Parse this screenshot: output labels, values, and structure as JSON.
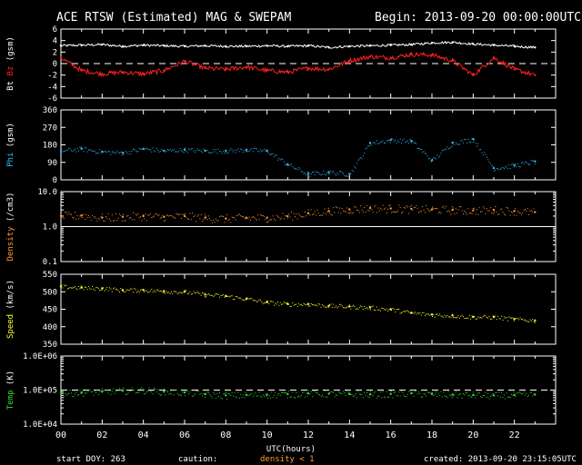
{
  "title": "ACE RTSW (Estimated) MAG & SWEPAM",
  "begin": "Begin: 2013-09-20 00:00:00UTC",
  "footer": {
    "start_doy": "start DOY: 263",
    "caution": "caution:",
    "density_note": "density < 1",
    "created": "created: 2013-09-20 23:15:05UTC"
  },
  "colors": {
    "bt": "#ffffff",
    "bz": "#ff2020",
    "phi": "#33bbee",
    "density": "#ff9933",
    "speed": "#ffff33",
    "temp": "#33dd33",
    "caution": "#ff9933"
  },
  "chart_data": [
    {
      "type": "line",
      "ylabel_parts": [
        "Bt",
        "Bz",
        "(gsm)"
      ],
      "ylim": [
        -6,
        6
      ],
      "yticks": [
        -6,
        -4,
        -2,
        0,
        2,
        4,
        6
      ],
      "reference_line": 0,
      "series": [
        {
          "name": "Bt",
          "x": [
            0,
            1,
            2,
            3,
            4,
            5,
            6,
            7,
            8,
            9,
            10,
            11,
            12,
            13,
            14,
            15,
            16,
            17,
            18,
            19,
            20,
            21,
            22,
            23
          ],
          "values": [
            3.1,
            3.2,
            3.3,
            3.0,
            3.2,
            3.1,
            3.0,
            3.1,
            3.0,
            3.0,
            3.1,
            3.0,
            3.1,
            2.8,
            3.0,
            3.1,
            3.2,
            3.3,
            3.6,
            3.7,
            3.4,
            3.2,
            3.0,
            2.8
          ]
        },
        {
          "name": "Bz",
          "x": [
            0,
            1,
            2,
            3,
            4,
            5,
            6,
            7,
            8,
            9,
            10,
            11,
            12,
            13,
            14,
            15,
            16,
            17,
            18,
            19,
            20,
            21,
            22,
            23
          ],
          "values": [
            1.0,
            -1.2,
            -1.8,
            -1.5,
            -1.8,
            -1.2,
            0.4,
            -0.8,
            -1.0,
            -0.6,
            -1.2,
            -1.5,
            -0.8,
            -1.0,
            0.5,
            1.2,
            1.0,
            1.6,
            1.5,
            0.5,
            -2.0,
            1.0,
            -1.0,
            -2.0
          ]
        }
      ]
    },
    {
      "type": "scatter",
      "ylabel_parts": [
        "Phi",
        "(gsm)"
      ],
      "ylim": [
        0,
        360
      ],
      "yticks": [
        0,
        90,
        180,
        270,
        360
      ],
      "series": [
        {
          "name": "Phi",
          "x": [
            0,
            1,
            2,
            3,
            4,
            5,
            6,
            7,
            8,
            9,
            10,
            11,
            12,
            13,
            14,
            15,
            16,
            17,
            18,
            19,
            20,
            21,
            22,
            23
          ],
          "values": [
            150,
            160,
            145,
            140,
            160,
            150,
            155,
            150,
            150,
            155,
            150,
            80,
            30,
            40,
            30,
            190,
            205,
            200,
            100,
            190,
            210,
            60,
            75,
            95
          ]
        }
      ]
    },
    {
      "type": "scatter",
      "ylabel_parts": [
        "Density",
        "(/cm3)"
      ],
      "yscale": "log",
      "ylim": [
        0.1,
        10.0
      ],
      "ytick_labels": [
        "0.1",
        "1.0",
        "10.0"
      ],
      "reference_line": 1.0,
      "series": [
        {
          "name": "Density",
          "x": [
            0,
            1,
            2,
            3,
            4,
            5,
            6,
            7,
            8,
            9,
            10,
            11,
            12,
            13,
            14,
            15,
            16,
            17,
            18,
            19,
            20,
            21,
            22,
            23
          ],
          "values": [
            2.0,
            2.1,
            1.8,
            1.9,
            2.0,
            1.9,
            2.0,
            1.8,
            1.7,
            1.8,
            1.8,
            2.0,
            2.4,
            2.8,
            3.1,
            3.4,
            3.3,
            3.2,
            3.1,
            3.0,
            2.9,
            3.0,
            2.8,
            2.6
          ]
        }
      ]
    },
    {
      "type": "scatter",
      "ylabel_parts": [
        "Speed",
        "(km/s)"
      ],
      "ylim": [
        350,
        550
      ],
      "yticks": [
        350,
        400,
        450,
        500,
        550
      ],
      "series": [
        {
          "name": "Speed",
          "x": [
            0,
            1,
            2,
            3,
            4,
            5,
            6,
            7,
            8,
            9,
            10,
            11,
            12,
            13,
            14,
            15,
            16,
            17,
            18,
            19,
            20,
            21,
            22,
            23
          ],
          "values": [
            515,
            512,
            510,
            505,
            505,
            502,
            500,
            492,
            488,
            480,
            470,
            465,
            465,
            460,
            458,
            455,
            450,
            440,
            435,
            432,
            428,
            428,
            422,
            418
          ]
        }
      ]
    },
    {
      "type": "scatter",
      "ylabel_parts": [
        "Temp",
        "(K)"
      ],
      "yscale": "log",
      "ylim": [
        10000,
        1000000
      ],
      "ytick_labels": [
        "1.0E+04",
        "1.0E+05",
        "1.0E+06"
      ],
      "reference_line": 100000,
      "series": [
        {
          "name": "Temp",
          "x": [
            0,
            1,
            2,
            3,
            4,
            5,
            6,
            7,
            8,
            9,
            10,
            11,
            12,
            13,
            14,
            15,
            16,
            17,
            18,
            19,
            20,
            21,
            22,
            23
          ],
          "values": [
            80000,
            85000,
            90000,
            95000,
            100000,
            90000,
            85000,
            75000,
            70000,
            72000,
            74000,
            76000,
            80000,
            78000,
            76000,
            75000,
            77000,
            80000,
            76000,
            74000,
            72000,
            70000,
            72000,
            74000
          ]
        }
      ]
    }
  ],
  "x_axis": {
    "xlim": [
      0,
      24
    ],
    "tick_labels": [
      "00",
      "02",
      "04",
      "06",
      "08",
      "10",
      "12",
      "14",
      "16",
      "18",
      "20",
      "22"
    ],
    "label": "UTC(hours)"
  }
}
